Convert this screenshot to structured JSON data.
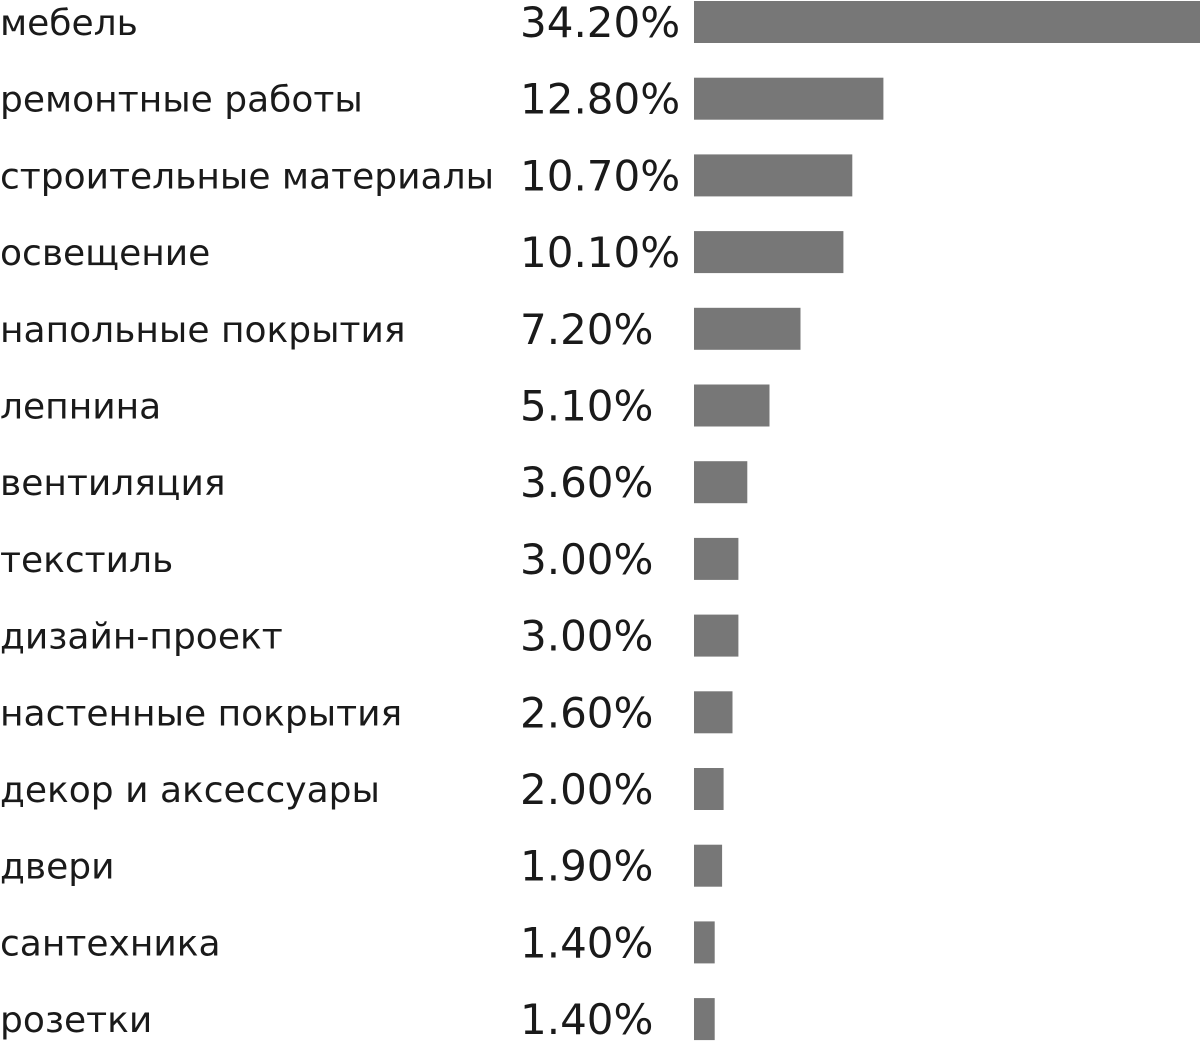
{
  "chart_data": {
    "type": "bar",
    "orientation": "horizontal",
    "categories": [
      "мебель",
      "ремонтные работы",
      "строительные материалы",
      "освещение",
      "напольные покрытия",
      "лепнина",
      "вентиляция",
      "текстиль",
      "дизайн-проект",
      "настенные покрытия",
      "декор и аксессуары",
      "двери",
      "сантехника",
      "розетки"
    ],
    "values": [
      34.2,
      12.8,
      10.7,
      10.1,
      7.2,
      5.1,
      3.6,
      3.0,
      3.0,
      2.6,
      2.0,
      1.9,
      1.4,
      1.4
    ],
    "value_labels": [
      "34.20%",
      "12.80%",
      "10.70%",
      "10.10%",
      "7.20%",
      "5.10%",
      "3.60%",
      "3.00%",
      "3.00%",
      "2.60%",
      "2.00%",
      "1.90%",
      "1.40%",
      "1.40%"
    ],
    "xlim": [
      0,
      34.2
    ],
    "title": "",
    "xlabel": "",
    "ylabel": "",
    "grid": false,
    "legend": "none",
    "bar_color": "#777777"
  }
}
